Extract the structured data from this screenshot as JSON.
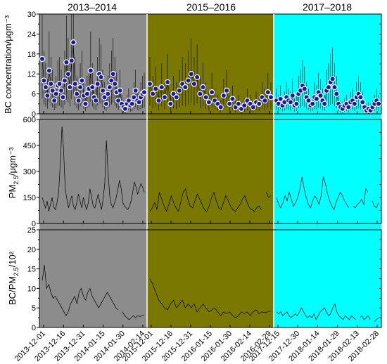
{
  "chart_data": {
    "type": "scatter",
    "periods": [
      {
        "label": "2013–2014",
        "color": "#8c8c8c"
      },
      {
        "label": "2015–2016",
        "color": "#7a7800"
      },
      {
        "label": "2017–2018",
        "color": "#00ffff"
      }
    ],
    "x_tick_labels": [
      "2013-12-01",
      "2013-12-16",
      "2013-12-31",
      "2014-01-15",
      "2014-01-30",
      "2014-02-14",
      "2015-12-01",
      "2015-12-16",
      "2015-12-31",
      "2016-01-15",
      "2016-01-30",
      "2016-02-14",
      "2016-02-29",
      "2017-12-15",
      "2017-12-30",
      "2018-01-14",
      "2018-01-29",
      "2018-02-13",
      "2018-02-28"
    ],
    "panels": [
      {
        "ylabel": "BC concentration/μgm⁻³",
        "ylim": [
          0,
          30
        ],
        "yticks": [
          0,
          3,
          6,
          9,
          12,
          15,
          18,
          21,
          24,
          27,
          30
        ],
        "ytick_labels": [
          "0",
          "",
          "6",
          "",
          "12",
          "",
          "18",
          "",
          "24",
          "",
          "30"
        ],
        "series": [
          {
            "period": 0,
            "values": [
              16.5,
              10,
              8,
              5.5,
              13,
              9,
              7,
              4,
              6,
              8.5,
              9,
              7,
              5,
              10,
              15.5,
              12,
              8,
              16,
              21.5,
              9,
              6,
              4,
              8,
              10,
              5.5,
              3,
              6,
              7.5,
              13,
              8,
              5,
              4,
              9,
              12,
              11,
              7,
              5,
              3,
              6,
              8,
              10,
              12,
              9,
              6.5,
              4,
              7,
              3,
              2,
              1.5,
              3,
              4,
              2.5,
              3,
              5,
              7,
              4,
              3.5,
              5,
              6,
              6.5
            ]
          },
          {
            "period": 1,
            "values": [
              9,
              6,
              7.5,
              4,
              8,
              5,
              9.5,
              3,
              6,
              5,
              7,
              9,
              8,
              10,
              12,
              9,
              11,
              6,
              8,
              5,
              3.5,
              6.5,
              4,
              3,
              2,
              5.5,
              7,
              3,
              4.5,
              2,
              3,
              1.5,
              2.5,
              4,
              3,
              2,
              3.5,
              3,
              5,
              4,
              6.5,
              5
            ]
          },
          {
            "period": 2,
            "values": [
              4,
              3,
              4.5,
              2.5,
              3.5,
              5,
              4,
              3.5,
              5.5,
              2.5,
              3,
              6,
              7,
              8.5,
              7.5,
              5,
              4,
              2.5,
              3,
              5,
              4.5,
              6.5,
              5.5,
              4,
              3,
              7,
              8,
              9.5,
              10.5,
              8,
              6,
              3,
              2,
              1.5,
              2.5,
              3,
              2,
              3.5,
              4,
              3,
              5,
              6,
              5,
              3.5,
              2,
              1,
              1.5,
              1,
              2,
              3,
              4,
              3
            ]
          }
        ]
      },
      {
        "ylabel": "PM2.5/μgm⁻³",
        "ylabel_main": "PM",
        "ylabel_sub": "2.5",
        "ylabel_unit": "/μgm⁻³",
        "ylim": [
          0,
          600
        ],
        "yticks": [
          0,
          75,
          150,
          225,
          300,
          375,
          450,
          525,
          600
        ],
        "ytick_labels": [
          "0",
          "",
          "150",
          "",
          "300",
          "",
          "450",
          "",
          "600"
        ],
        "series": [
          {
            "period": 0,
            "values": [
              150,
              120,
              90,
              130,
              70,
              110,
              150,
              95,
              80,
              120,
              180,
              350,
              560,
              420,
              200,
              140,
              90,
              130,
              160,
              100,
              80,
              120,
              170,
              130,
              90,
              150,
              110,
              80,
              120,
              200,
              150,
              100,
              90,
              130,
              170,
              120,
              80,
              140,
              230,
              480,
              300,
              160,
              110,
              90,
              120,
              150,
              200,
              250,
              200,
              120,
              100,
              90,
              80,
              100,
              130,
              180,
              240,
              210,
              170,
              200,
              230,
              210,
              180
            ]
          },
          {
            "period": 1,
            "values": [
              70,
              90,
              120,
              80,
              180,
              140,
              100,
              70,
              110,
              160,
              120,
              90,
              70,
              120,
              180,
              200,
              140,
              100,
              90,
              130,
              170,
              140,
              110,
              80,
              70,
              100,
              150,
              180,
              130,
              90,
              80,
              120,
              160,
              130,
              100,
              80,
              70,
              90,
              110,
              140,
              160,
              120,
              90,
              80,
              70,
              90,
              100,
              80,
              null,
              180,
              150,
              160
            ]
          },
          {
            "period": 2,
            "values": [
              150,
              110,
              90,
              120,
              160,
              130,
              180,
              140,
              100,
              120,
              150,
              200,
              270,
              200,
              150,
              110,
              90,
              130,
              160,
              140,
              110,
              160,
              270,
              230,
              170,
              130,
              100,
              80,
              120,
              150,
              180,
              160,
              130,
              110,
              90,
              null,
              100,
              90,
              110,
              120,
              140,
              110,
              200,
              180,
              null,
              130,
              100,
              90,
              120
            ]
          }
        ]
      },
      {
        "ylabel": "BC/PM2.5/10²",
        "ylabel_main": "BC/PM",
        "ylabel_sub": "2.5",
        "ylabel_unit": "/10²",
        "ylim": [
          0,
          25
        ],
        "yticks": [
          0,
          2.5,
          5,
          7.5,
          10,
          12.5,
          15,
          17.5,
          20,
          22.5,
          25
        ],
        "ytick_labels": [
          "0",
          "",
          "5",
          "",
          "10",
          "",
          "15",
          "",
          "20",
          "",
          "25"
        ],
        "series": [
          {
            "period": 0,
            "values": [
              12,
              16,
              10,
              11,
              9,
              7.5,
              8,
              7,
              6,
              5,
              4,
              3,
              4,
              6,
              7,
              8,
              6,
              9,
              10,
              8,
              7,
              9,
              10,
              8,
              7,
              6,
              5,
              6,
              7,
              8,
              9,
              8,
              7,
              6,
              5,
              4.5,
              null,
              4,
              3,
              2.5,
              2,
              2.5,
              3,
              2.5,
              3,
              2.8,
              3,
              3.2
            ]
          },
          {
            "period": 1,
            "values": [
              12.5,
              11,
              9,
              7,
              6,
              5,
              4.5,
              6,
              7,
              5,
              6,
              7,
              5,
              6,
              5,
              6,
              4,
              5,
              6,
              5,
              4,
              4.5,
              5,
              4,
              3,
              4,
              3.5,
              4,
              3,
              2.5,
              3,
              4,
              3.5,
              4,
              3,
              4,
              4.5,
              3.5,
              4,
              3.8,
              4,
              4.2
            ]
          },
          {
            "period": 2,
            "values": [
              4,
              3.5,
              4,
              3,
              3.5,
              4,
              3,
              2.5,
              3,
              3.5,
              3,
              4,
              5,
              4,
              3,
              2.5,
              3,
              2.5,
              3.5,
              2,
              3,
              4,
              4.5,
              5,
              4,
              3,
              3.5,
              5,
              6,
              4,
              3,
              2.5,
              2,
              3,
              2.5,
              2,
              3,
              2.5,
              2,
              null,
              2.5,
              3,
              2,
              2.5,
              3,
              2,
              null,
              1.5,
              2,
              2.5
            ]
          }
        ]
      }
    ],
    "colors": {
      "marker_fill": "#1a1aa6",
      "marker_edge": "#ffffff",
      "line": "#000000"
    }
  }
}
